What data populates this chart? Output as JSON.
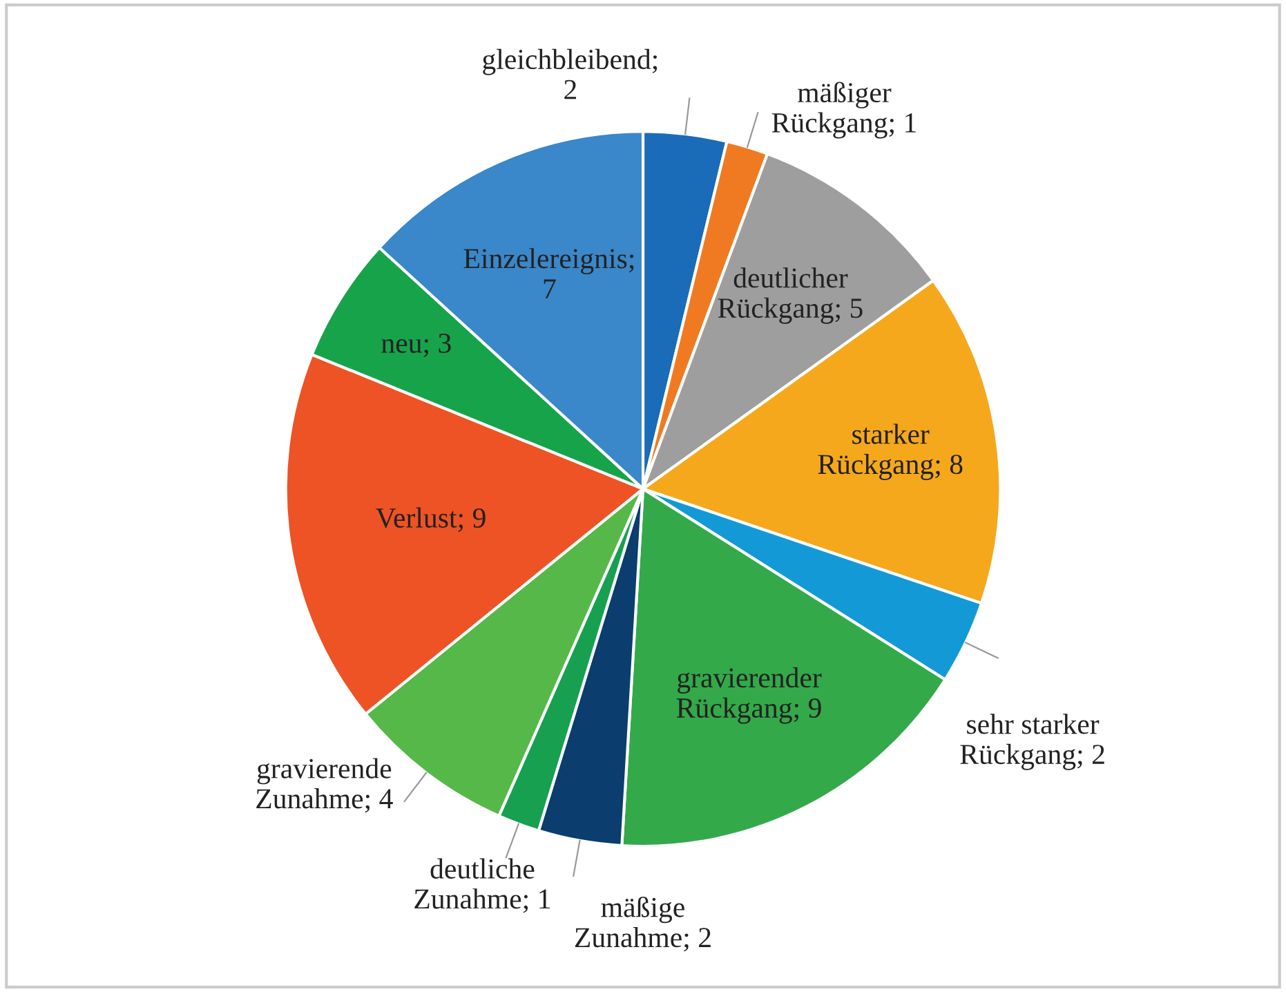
{
  "chart_data": {
    "type": "pie",
    "categories": [
      "gleichbleibend; 2",
      "mäßiger Rückgang; 1",
      "deutlicher Rückgang; 5",
      "starker Rückgang; 8",
      "sehr starker Rückgang; 2",
      "gravierender Rückgang; 9",
      "mäßige Zunahme; 2",
      "deutliche Zunahme; 1",
      "gravierende Zunahme; 4",
      "Verlust; 9",
      "neu; 3",
      "Einzelereignis; 7"
    ],
    "values": [
      2,
      1,
      5,
      8,
      2,
      9,
      2,
      1,
      4,
      9,
      3,
      7
    ],
    "colors": [
      "#1a6bb8",
      "#f07a22",
      "#9e9e9e",
      "#f5a81c",
      "#139ad6",
      "#33a94a",
      "#0b3d6e",
      "#16a050",
      "#55b848",
      "#ee5325",
      "#17a34a",
      "#3a87c9"
    ]
  }
}
